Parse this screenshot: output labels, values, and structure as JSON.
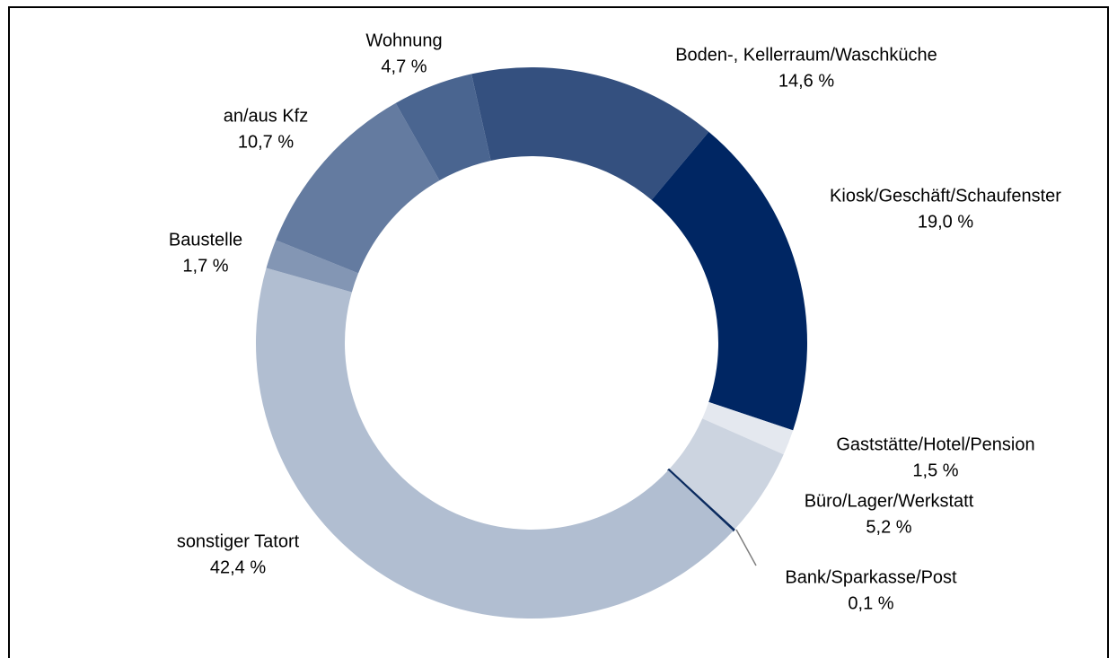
{
  "chart_data": {
    "type": "donut",
    "categories": [
      "Boden-, Kellerraum/Waschküche",
      "Kiosk/Geschäft/Schaufenster",
      "Gaststätte/Hotel/Pension",
      "Büro/Lager/Werkstatt",
      "Bank/Sparkasse/Post",
      "sonstiger Tatort",
      "Baustelle",
      "an/aus Kfz",
      "Wohnung"
    ],
    "values": [
      14.6,
      19.0,
      1.5,
      5.2,
      0.1,
      42.4,
      1.7,
      10.7,
      4.7
    ],
    "value_labels": [
      "14,6 %",
      "19,0 %",
      "1,5 %",
      "5,2 %",
      "0,1 %",
      "42,4 %",
      "1,7 %",
      "10,7 %",
      "4,7 %"
    ],
    "colors": [
      "#34507f",
      "#002663",
      "#e4e8ef",
      "#ccd4e0",
      "#0a2a5e",
      "#b1bed1",
      "#8396b4",
      "#647ba0",
      "#4a6590"
    ]
  }
}
